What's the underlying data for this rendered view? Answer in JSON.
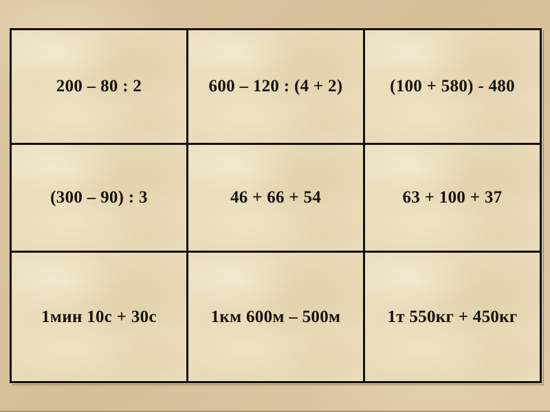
{
  "slide": {
    "background_color": "#d9c49d",
    "bottom_edge_color": "#6e5c38"
  },
  "table": {
    "border_color": "#15100a",
    "cell_background": "#e9dcba",
    "text_color": "#17120b",
    "rows": [
      {
        "cells": [
          "200 – 80 : 2",
          "600 – 120 : (4 + 2)",
          "(100 + 580) - 480"
        ]
      },
      {
        "cells": [
          "(300 – 90) : 3",
          "46 + 66 + 54",
          "63 + 100 + 37"
        ]
      },
      {
        "cells": [
          "1мин 10с + 30с",
          "1км 600м – 500м",
          "1т 550кг + 450кг"
        ]
      }
    ]
  }
}
